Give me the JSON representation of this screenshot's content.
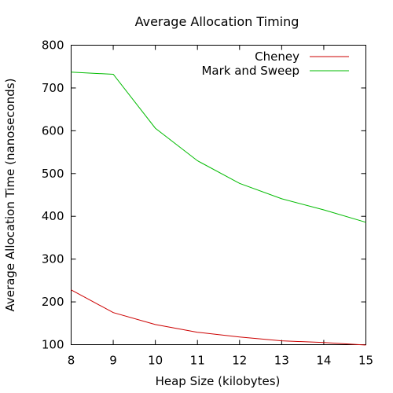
{
  "chart_data": {
    "type": "line",
    "title": "Average Allocation Timing",
    "xlabel": "Heap Size (kilobytes)",
    "ylabel": "Average Allocation Time (nanoseconds)",
    "xlim": [
      8,
      15
    ],
    "ylim": [
      100,
      800
    ],
    "xticks": [
      "8",
      "9",
      "10",
      "11",
      "12",
      "13",
      "14",
      "15"
    ],
    "yticks": [
      "100",
      "200",
      "300",
      "400",
      "500",
      "600",
      "700",
      "800"
    ],
    "grid": false,
    "legend_position": "top-right",
    "series": [
      {
        "name": "Cheney",
        "color": "#cc0000",
        "x": [
          8,
          9,
          10,
          11,
          12,
          13,
          14,
          15
        ],
        "y": [
          228,
          175,
          147,
          129,
          118,
          109,
          105,
          99
        ]
      },
      {
        "name": "Mark and Sweep",
        "color": "#00bb00",
        "x": [
          8,
          9,
          10,
          11,
          12,
          13,
          14,
          15
        ],
        "y": [
          737,
          732,
          606,
          530,
          477,
          441,
          415,
          386
        ]
      }
    ]
  }
}
